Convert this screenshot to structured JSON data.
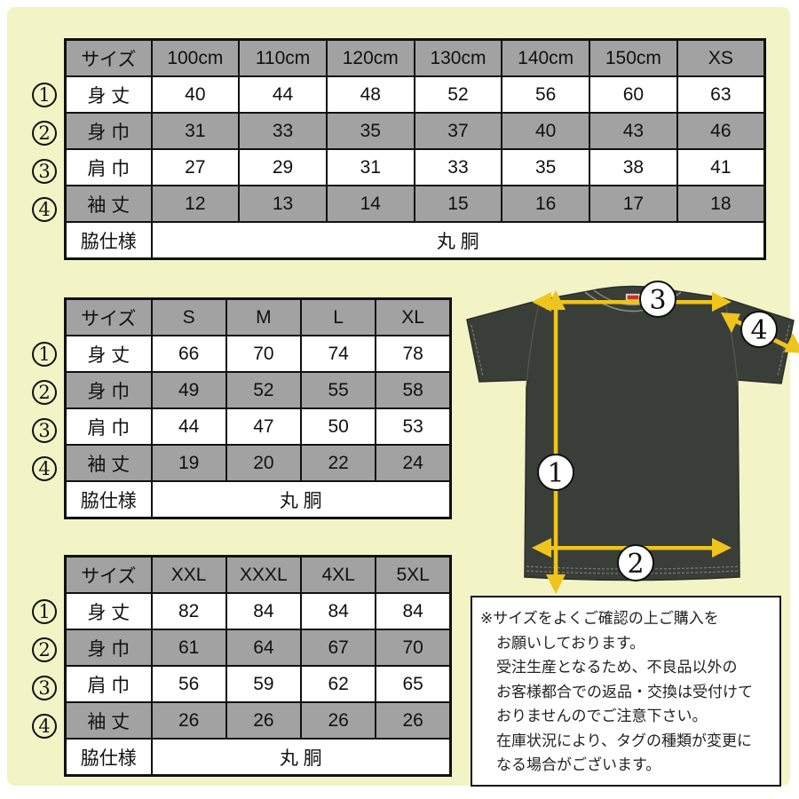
{
  "colors": {
    "page_bg": "#f2f4c6",
    "frame": "#ffffff",
    "row_shade": "#a2a2a2",
    "border": "#111111",
    "arrow_yellow": "#eec41d",
    "shirt_gray": "#3a3e39"
  },
  "tables": [
    {
      "name": "kids-sizes",
      "header": [
        "サイズ",
        "100cm",
        "110cm",
        "120cm",
        "130cm",
        "140cm",
        "150cm",
        "XS"
      ],
      "rows": [
        {
          "num": "1",
          "label": "身 丈",
          "values": [
            "40",
            "44",
            "48",
            "52",
            "56",
            "60",
            "63"
          ]
        },
        {
          "num": "2",
          "label": "身 巾",
          "values": [
            "31",
            "33",
            "35",
            "37",
            "40",
            "43",
            "46"
          ]
        },
        {
          "num": "3",
          "label": "肩 巾",
          "values": [
            "27",
            "29",
            "31",
            "33",
            "35",
            "38",
            "41"
          ]
        },
        {
          "num": "4",
          "label": "袖 丈",
          "values": [
            "12",
            "13",
            "14",
            "15",
            "16",
            "17",
            "18"
          ]
        }
      ],
      "footer": {
        "label": "脇仕様",
        "value": "丸 胴"
      }
    },
    {
      "name": "adult-sizes",
      "header": [
        "サイズ",
        "S",
        "M",
        "L",
        "XL"
      ],
      "rows": [
        {
          "num": "1",
          "label": "身 丈",
          "values": [
            "66",
            "70",
            "74",
            "78"
          ]
        },
        {
          "num": "2",
          "label": "身 巾",
          "values": [
            "49",
            "52",
            "55",
            "58"
          ]
        },
        {
          "num": "3",
          "label": "肩 巾",
          "values": [
            "44",
            "47",
            "50",
            "53"
          ]
        },
        {
          "num": "4",
          "label": "袖 丈",
          "values": [
            "19",
            "20",
            "22",
            "24"
          ]
        }
      ],
      "footer": {
        "label": "脇仕様",
        "value": "丸 胴"
      }
    },
    {
      "name": "big-sizes",
      "header": [
        "サイズ",
        "XXL",
        "XXXL",
        "4XL",
        "5XL"
      ],
      "rows": [
        {
          "num": "1",
          "label": "身 丈",
          "values": [
            "82",
            "84",
            "84",
            "84"
          ]
        },
        {
          "num": "2",
          "label": "身 巾",
          "values": [
            "61",
            "64",
            "67",
            "70"
          ]
        },
        {
          "num": "3",
          "label": "肩 巾",
          "values": [
            "56",
            "59",
            "62",
            "65"
          ]
        },
        {
          "num": "4",
          "label": "袖 丈",
          "values": [
            "26",
            "26",
            "26",
            "26"
          ]
        }
      ],
      "footer": {
        "label": "脇仕様",
        "value": "丸 胴"
      }
    }
  ],
  "markers": [
    "1",
    "2",
    "3",
    "4"
  ],
  "note": {
    "lines": [
      "※サイズをよくご確認の上ご購入を",
      "お願いしております。",
      "受注生産となるため、不良品以外の",
      "お客様都合での返品・交換は受付けて",
      "おりませんのでご注意下さい。",
      "在庫状況により、タグの種類が変更に",
      "なる場合がございます。"
    ]
  }
}
